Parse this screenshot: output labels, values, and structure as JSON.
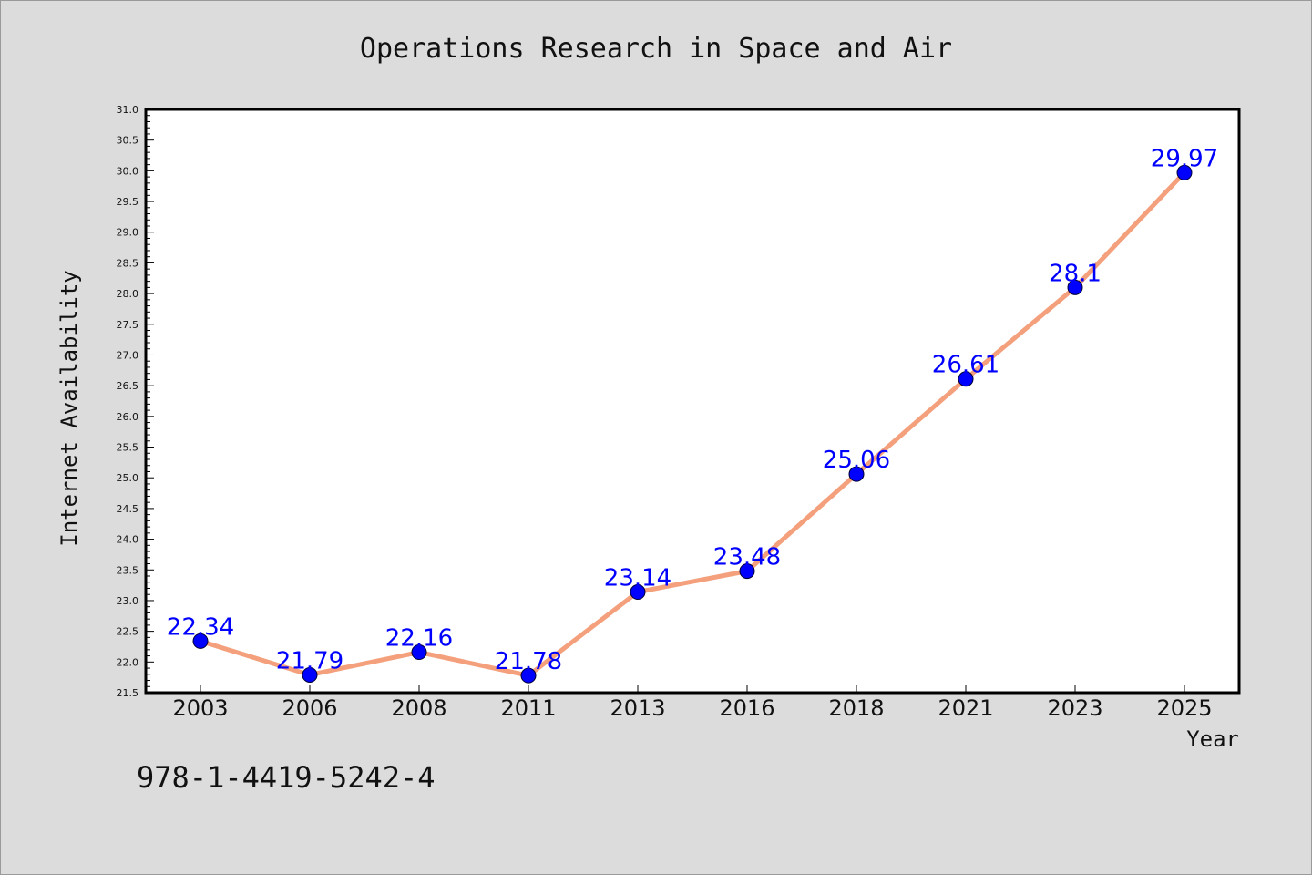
{
  "chart_data": {
    "type": "line",
    "title": "Operations Research in Space and Air",
    "xlabel": "Year",
    "ylabel": "Internet Availability",
    "categories": [
      "2003",
      "2006",
      "2008",
      "2011",
      "2013",
      "2016",
      "2018",
      "2021",
      "2023",
      "2025"
    ],
    "series": [
      {
        "values": [
          22.34,
          21.79,
          22.16,
          21.78,
          23.14,
          23.48,
          25.06,
          26.61,
          28.1,
          29.97
        ]
      }
    ],
    "data_labels": [
      "22.34",
      "21.79",
      "22.16",
      "21.78",
      "23.14",
      "23.48",
      "25.06",
      "26.61",
      "28.1",
      "29.97"
    ],
    "ylim": [
      21.5,
      31.0
    ],
    "yticks": [
      "21.5",
      "22.0",
      "22.5",
      "23.0",
      "23.5",
      "24.0",
      "24.5",
      "25.0",
      "25.5",
      "26.0",
      "26.5",
      "27.0",
      "27.5",
      "28.0",
      "28.5",
      "29.0",
      "29.5",
      "30.0",
      "30.5",
      "31.0"
    ],
    "grid": false,
    "legend": "none",
    "colors": {
      "line": "#f4a07c",
      "marker": "#0000ff",
      "label": "#0000ff",
      "background": "#dcdcdc",
      "plot_background": "#ffffff"
    }
  },
  "footer": {
    "isbn": "978-1-4419-5242-4"
  }
}
